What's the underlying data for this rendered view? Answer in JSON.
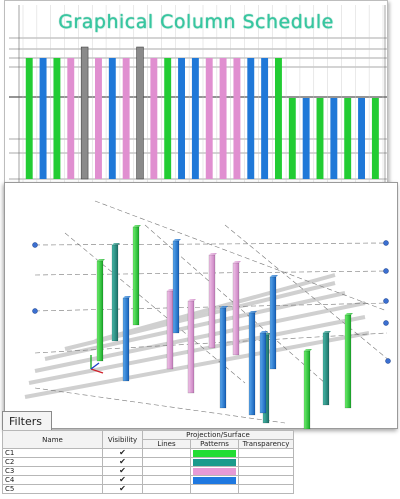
{
  "schedule": {
    "title": "Graphical Column Schedule",
    "colors": {
      "green": "#22cc33",
      "blue": "#1f78d8",
      "pink": "#e08fd0",
      "gray": "#8a8a8a"
    },
    "columns": [
      {
        "color": "green",
        "level": "full"
      },
      {
        "color": "blue",
        "level": "full"
      },
      {
        "color": "green",
        "level": "full"
      },
      {
        "color": "pink",
        "level": "full"
      },
      {
        "color": "gray",
        "level": "full"
      },
      {
        "color": "pink",
        "level": "full"
      },
      {
        "color": "blue",
        "level": "full"
      },
      {
        "color": "pink",
        "level": "full"
      },
      {
        "color": "gray",
        "level": "full"
      },
      {
        "color": "pink",
        "level": "full"
      },
      {
        "color": "green",
        "level": "full"
      },
      {
        "color": "blue",
        "level": "full"
      },
      {
        "color": "blue",
        "level": "full"
      },
      {
        "color": "pink",
        "level": "full"
      },
      {
        "color": "pink",
        "level": "full"
      },
      {
        "color": "pink",
        "level": "full"
      },
      {
        "color": "blue",
        "level": "full"
      },
      {
        "color": "blue",
        "level": "full"
      },
      {
        "color": "green",
        "level": "full"
      },
      {
        "color": "green",
        "level": "lower"
      },
      {
        "color": "blue",
        "level": "lower"
      },
      {
        "color": "green",
        "level": "lower"
      },
      {
        "color": "blue",
        "level": "lower"
      },
      {
        "color": "green",
        "level": "lower"
      },
      {
        "color": "blue",
        "level": "lower"
      },
      {
        "color": "green",
        "level": "lower"
      }
    ]
  },
  "view3d": {
    "icons": [
      "view-cube-axes-icon"
    ]
  },
  "filters": {
    "tab_label": "Filters",
    "headers": {
      "name": "Name",
      "visibility": "Visibility",
      "projection": "Projection/Surface",
      "lines": "Lines",
      "patterns": "Patterns",
      "transparency": "Transparency"
    },
    "rows": [
      {
        "name": "C1",
        "visible": true,
        "pattern_color": "#22dd33"
      },
      {
        "name": "C2",
        "visible": true,
        "pattern_color": "#1a9b8c"
      },
      {
        "name": "C3",
        "visible": true,
        "pattern_color": "#e79ad6"
      },
      {
        "name": "C4",
        "visible": true,
        "pattern_color": "#1f78e0"
      },
      {
        "name": "C5",
        "visible": true,
        "pattern_color": ""
      }
    ]
  }
}
